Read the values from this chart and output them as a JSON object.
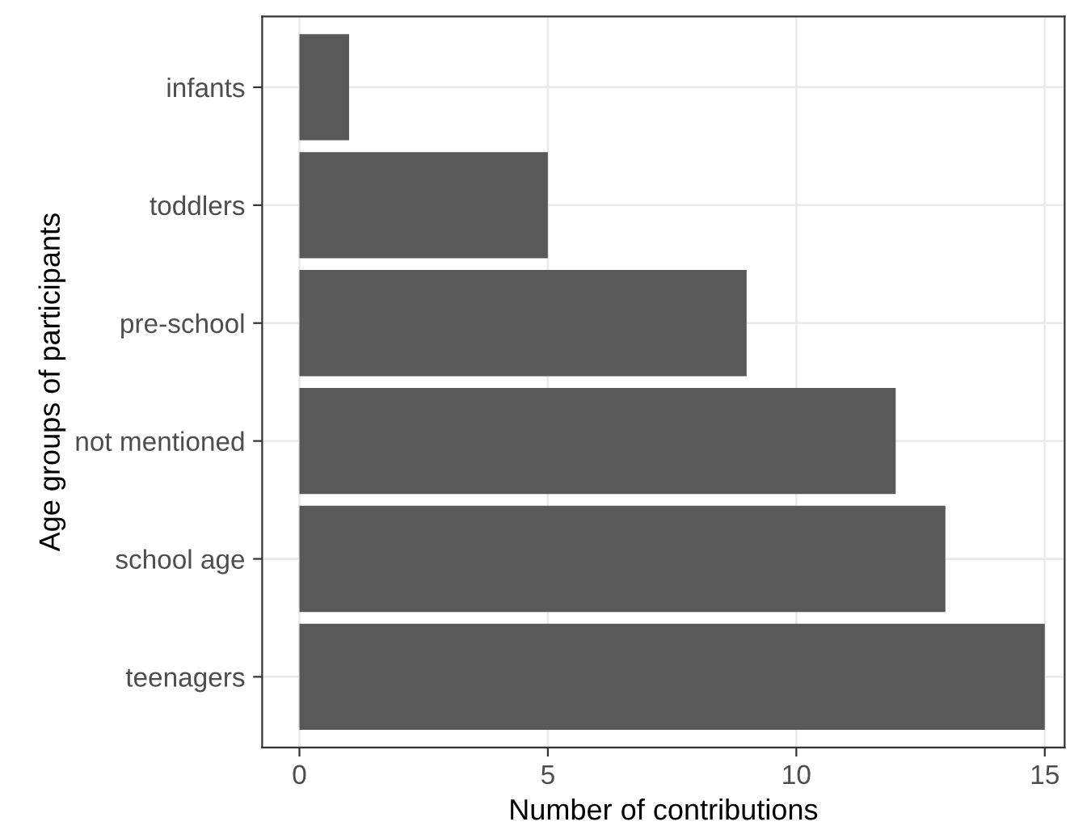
{
  "chart_data": {
    "type": "bar",
    "orientation": "horizontal",
    "xlabel": "Number of contributions",
    "ylabel": "Age groups of participants",
    "categories": [
      "infants",
      "toddlers",
      "pre-school",
      "not mentioned",
      "school age",
      "teenagers"
    ],
    "values": [
      1,
      5,
      9,
      12,
      13,
      15
    ],
    "color": "#595959",
    "xlim": [
      -0.75,
      15.4
    ],
    "xticks": [
      0,
      5,
      10,
      15
    ],
    "grid": true,
    "legend": false
  }
}
